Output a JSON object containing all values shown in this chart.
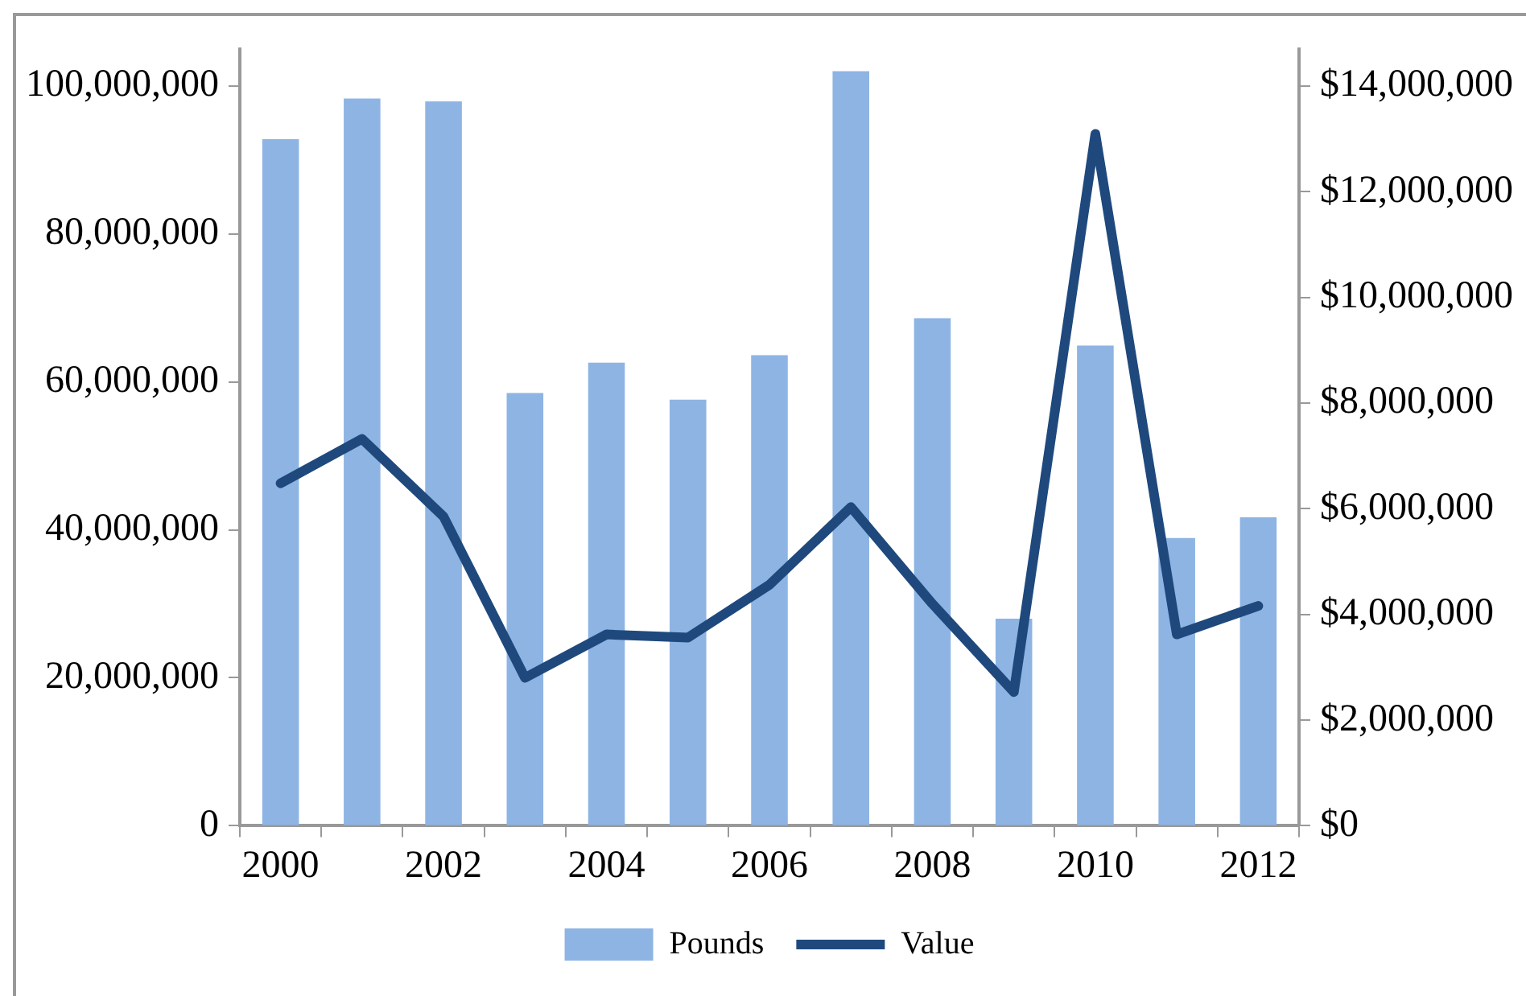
{
  "chart_data": {
    "type": "bar",
    "categories": [
      "2000",
      null,
      "2002",
      null,
      "2004",
      null,
      "2006",
      null,
      "2008",
      null,
      "2010",
      null,
      "2012"
    ],
    "series": [
      {
        "name": "Pounds",
        "color": "#8eb4e3",
        "values": [
          92800000,
          98300000,
          97900000,
          58500000,
          62600000,
          57600000,
          63600000,
          102000000,
          68600000,
          28000000,
          64900000,
          38900000,
          41700000
        ]
      },
      {
        "name": "Value",
        "type": "line",
        "axis": "y2",
        "color": "#1f497d",
        "values": [
          6480000,
          7320000,
          5850000,
          2800000,
          3620000,
          3560000,
          4560000,
          6030000,
          4200000,
          2530000,
          13090000,
          3620000,
          4160000
        ]
      }
    ],
    "ylim": [
      0,
      105000000
    ],
    "yticks": [
      {
        "value": 0,
        "label": "0"
      },
      {
        "value": 20000000,
        "label": "20,000,000"
      },
      {
        "value": 40000000,
        "label": "40,000,000"
      },
      {
        "value": 60000000,
        "label": "60,000,000"
      },
      {
        "value": 80000000,
        "label": "80,000,000"
      },
      {
        "value": 100000000,
        "label": "100,000,000"
      }
    ],
    "y2lim": [
      0,
      14700000
    ],
    "y2ticks": [
      {
        "value": 0,
        "label": "$0"
      },
      {
        "value": 2000000,
        "label": "$2,000,000"
      },
      {
        "value": 4000000,
        "label": "$4,000,000"
      },
      {
        "value": 6000000,
        "label": "$6,000,000"
      },
      {
        "value": 8000000,
        "label": "$8,000,000"
      },
      {
        "value": 10000000,
        "label": "$10,000,000"
      },
      {
        "value": 12000000,
        "label": "$12,000,000"
      },
      {
        "value": 14000000,
        "label": "$14,000,000"
      }
    ],
    "grid": false,
    "legend": "bottom",
    "marker": "none",
    "line_style": "solid"
  }
}
